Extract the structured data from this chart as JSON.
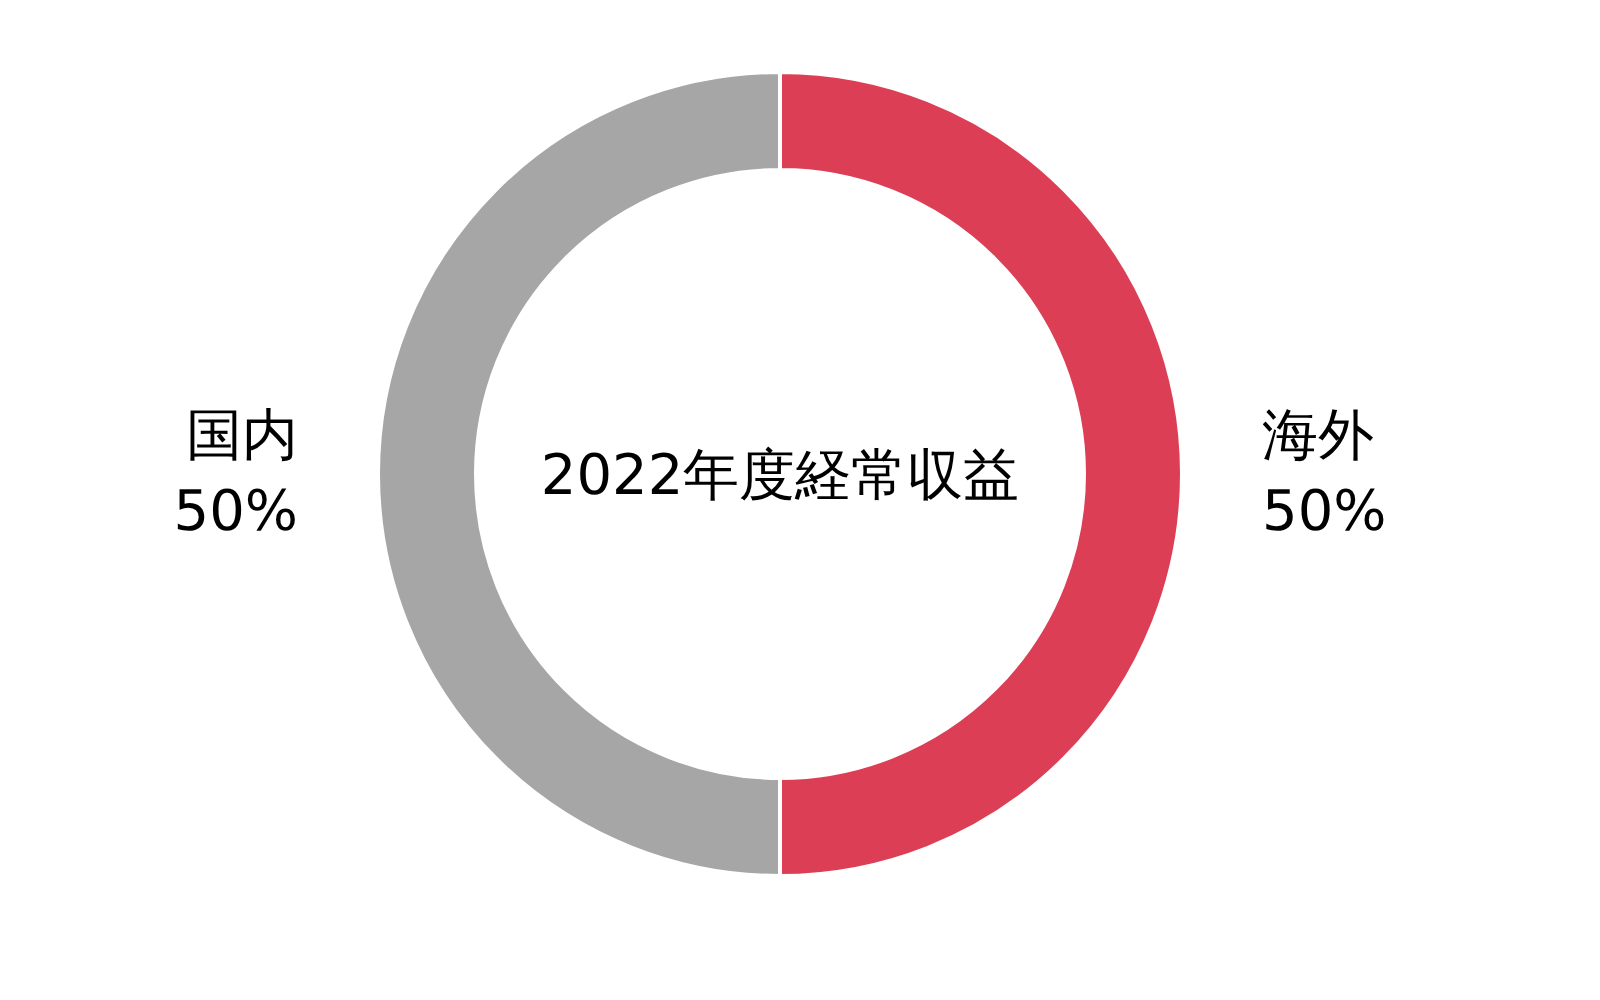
{
  "chart_data": {
    "type": "donut",
    "title": "2022年度経常収益",
    "categories": [
      "海外",
      "国内"
    ],
    "values": [
      50,
      50
    ],
    "colors": [
      "#dc3f55",
      "#a6a6a6"
    ],
    "value_labels": [
      "50%",
      "50%"
    ]
  }
}
